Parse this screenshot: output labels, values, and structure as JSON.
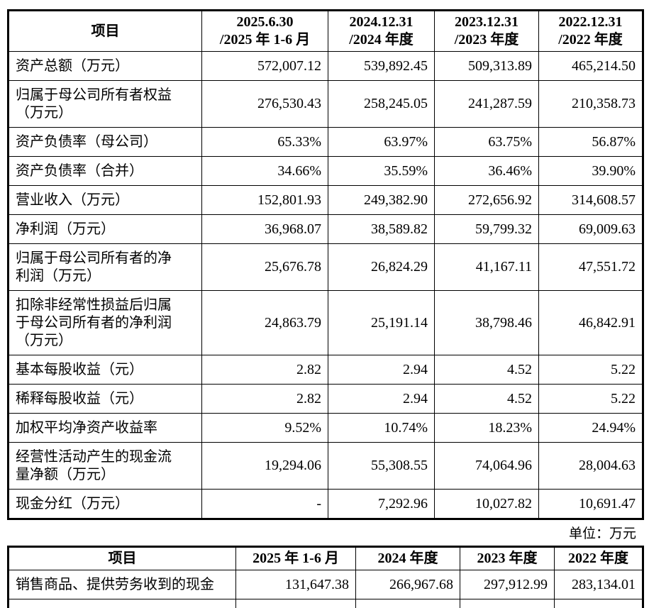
{
  "unit_note": "单位：万元",
  "tables": [
    {
      "title": "key-financial-indicators",
      "headers": [
        "项目",
        "2025.6.30\n/2025 年 1-6 月",
        "2024.12.31\n/2024 年度",
        "2023.12.31\n/2023 年度",
        "2022.12.31\n/2022 年度"
      ],
      "rows": [
        {
          "label": "资产总额（万元）",
          "values": [
            "572,007.12",
            "539,892.45",
            "509,313.89",
            "465,214.50"
          ]
        },
        {
          "label": "归属于母公司所有者权益\n（万元）",
          "values": [
            "276,530.43",
            "258,245.05",
            "241,287.59",
            "210,358.73"
          ]
        },
        {
          "label": "资产负债率（母公司）",
          "values": [
            "65.33%",
            "63.97%",
            "63.75%",
            "56.87%"
          ]
        },
        {
          "label": "资产负债率（合并）",
          "values": [
            "34.66%",
            "35.59%",
            "36.46%",
            "39.90%"
          ]
        },
        {
          "label": "营业收入（万元）",
          "values": [
            "152,801.93",
            "249,382.90",
            "272,656.92",
            "314,608.57"
          ]
        },
        {
          "label": "净利润（万元）",
          "values": [
            "36,968.07",
            "38,589.82",
            "59,799.32",
            "69,009.63"
          ]
        },
        {
          "label": "归属于母公司所有者的净\n利润（万元）",
          "values": [
            "25,676.78",
            "26,824.29",
            "41,167.11",
            "47,551.72"
          ]
        },
        {
          "label": "扣除非经常性损益后归属\n于母公司所有者的净利润\n（万元）",
          "values": [
            "24,863.79",
            "25,191.14",
            "38,798.46",
            "46,842.91"
          ]
        },
        {
          "label": "基本每股收益（元）",
          "values": [
            "2.82",
            "2.94",
            "4.52",
            "5.22"
          ]
        },
        {
          "label": "稀释每股收益（元）",
          "values": [
            "2.82",
            "2.94",
            "4.52",
            "5.22"
          ]
        },
        {
          "label": "加权平均净资产收益率",
          "values": [
            "9.52%",
            "10.74%",
            "18.23%",
            "24.94%"
          ]
        },
        {
          "label": "经营性活动产生的现金流\n量净额（万元）",
          "values": [
            "19,294.06",
            "55,308.55",
            "74,064.96",
            "28,004.63"
          ]
        },
        {
          "label": "现金分红（万元）",
          "values": [
            "-",
            "7,292.96",
            "10,027.82",
            "10,691.47"
          ]
        }
      ]
    },
    {
      "title": "cash-receipts",
      "headers": [
        "项目",
        "2025 年 1-6 月",
        "2024 年度",
        "2023 年度",
        "2022 年度"
      ],
      "rows": [
        {
          "label": "销售商品、提供劳务收到的现金",
          "values": [
            "131,647.38",
            "266,967.68",
            "297,912.99",
            "283,134.01"
          ]
        },
        {
          "label": "",
          "values": [
            "",
            "",
            "",
            ""
          ],
          "partial": true
        }
      ]
    }
  ]
}
